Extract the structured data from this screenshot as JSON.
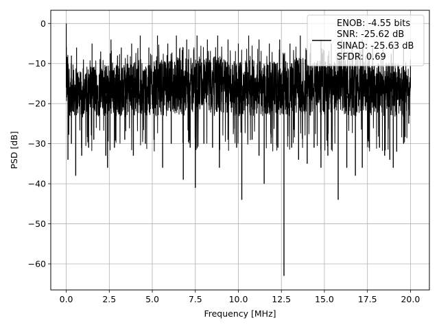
{
  "chart_data": {
    "type": "line",
    "xlabel": "Frequency [MHz]",
    "ylabel": "PSD [dB]",
    "xlim": [
      -0.9,
      21.1
    ],
    "ylim": [
      -66.5,
      3.3
    ],
    "xticks": [
      0.0,
      2.5,
      5.0,
      7.5,
      10.0,
      12.5,
      15.0,
      17.5,
      20.0
    ],
    "xtick_labels": [
      "0.0",
      "2.5",
      "5.0",
      "7.5",
      "10.0",
      "12.5",
      "15.0",
      "17.5",
      "20.0"
    ],
    "yticks": [
      0,
      -10,
      -20,
      -30,
      -40,
      -50,
      -60
    ],
    "ytick_labels": [
      "0",
      "−10",
      "−20",
      "−30",
      "−40",
      "−50",
      "−60"
    ],
    "grid": true,
    "legend_position": "top-right",
    "legend_lines": [
      "ENOB: -4.55 bits",
      "SNR: -25.62 dB",
      "SINAD: -25.63 dB",
      "SFDR: 0.69"
    ],
    "series_color": "#000000",
    "series": [
      {
        "peaks": [
          [
            0.0,
            0
          ],
          [
            0.3,
            -8
          ],
          [
            0.6,
            -6
          ],
          [
            1.0,
            -9
          ],
          [
            1.5,
            -5
          ],
          [
            2.0,
            -7
          ],
          [
            2.6,
            -4
          ],
          [
            3.2,
            -6
          ],
          [
            3.8,
            -5
          ],
          [
            4.3,
            -3
          ],
          [
            4.8,
            -6
          ],
          [
            5.3,
            -3
          ],
          [
            5.9,
            -5
          ],
          [
            6.4,
            -3
          ],
          [
            7.0,
            -4
          ],
          [
            7.6,
            -3
          ],
          [
            8.2,
            -4
          ],
          [
            8.8,
            -3
          ],
          [
            9.4,
            -4
          ],
          [
            10.0,
            -5
          ],
          [
            10.6,
            -3
          ],
          [
            11.2,
            -4
          ],
          [
            11.8,
            -5
          ],
          [
            12.4,
            -4
          ],
          [
            13.0,
            -5
          ],
          [
            13.6,
            -3
          ],
          [
            14.2,
            -5
          ],
          [
            14.8,
            -4
          ],
          [
            15.4,
            -5
          ],
          [
            16.0,
            -4
          ],
          [
            16.6,
            -5
          ],
          [
            17.2,
            -4
          ],
          [
            17.8,
            -6
          ],
          [
            18.4,
            -5
          ],
          [
            19.0,
            -5
          ],
          [
            19.6,
            -6
          ],
          [
            20.0,
            -9
          ]
        ],
        "troughs": [
          [
            0.1,
            -34
          ],
          [
            0.3,
            -30
          ],
          [
            0.55,
            -38
          ],
          [
            0.9,
            -33
          ],
          [
            1.3,
            -31
          ],
          [
            1.6,
            -29
          ],
          [
            2.3,
            -33
          ],
          [
            2.4,
            -36
          ],
          [
            2.8,
            -31
          ],
          [
            3.4,
            -29
          ],
          [
            3.9,
            -33
          ],
          [
            4.6,
            -30
          ],
          [
            5.1,
            -29
          ],
          [
            5.6,
            -36
          ],
          [
            6.1,
            -30
          ],
          [
            6.8,
            -39
          ],
          [
            7.2,
            -31
          ],
          [
            7.5,
            -41
          ],
          [
            8.0,
            -30
          ],
          [
            8.5,
            -31
          ],
          [
            8.9,
            -36
          ],
          [
            9.4,
            -29
          ],
          [
            9.9,
            -31
          ],
          [
            10.2,
            -44
          ],
          [
            10.8,
            -29
          ],
          [
            11.2,
            -33
          ],
          [
            11.5,
            -40
          ],
          [
            11.9,
            -30
          ],
          [
            12.3,
            -31
          ],
          [
            12.65,
            -63
          ],
          [
            13.1,
            -31
          ],
          [
            13.5,
            -34
          ],
          [
            14.0,
            -35
          ],
          [
            14.4,
            -31
          ],
          [
            14.8,
            -36
          ],
          [
            15.2,
            -33
          ],
          [
            15.8,
            -44
          ],
          [
            16.3,
            -36
          ],
          [
            16.8,
            -38
          ],
          [
            17.2,
            -36
          ],
          [
            17.6,
            -31
          ],
          [
            18.2,
            -31
          ],
          [
            18.5,
            -33
          ],
          [
            18.8,
            -34
          ],
          [
            19.0,
            -36
          ],
          [
            19.2,
            -32
          ],
          [
            19.6,
            -30
          ],
          [
            19.9,
            -25
          ]
        ]
      }
    ]
  }
}
